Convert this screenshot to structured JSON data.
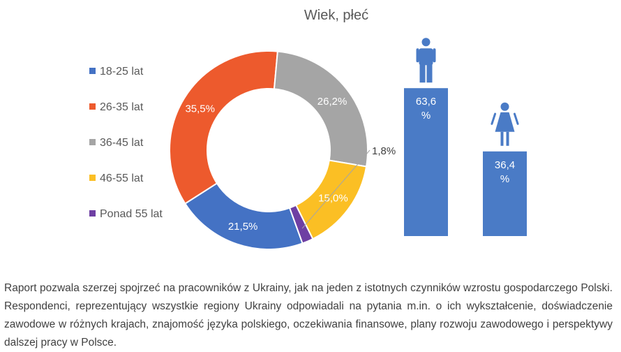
{
  "chart_data": [
    {
      "type": "pie",
      "title": "Wiek, płeć",
      "categories": [
        "18-25 lat",
        "26-35 lat",
        "36-45 lat",
        "46-55 lat",
        "Ponad 55 lat"
      ],
      "values": [
        21.5,
        35.5,
        26.2,
        15.0,
        1.8
      ],
      "labels": [
        "21,5%",
        "35,5%",
        "26,2%",
        "15,0%",
        "1,8%"
      ],
      "colors": [
        "#4472C4",
        "#ED5A2D",
        "#A5A5A5",
        "#FBBF24",
        "#6E3FA3"
      ],
      "donut": true,
      "legend": "left"
    },
    {
      "type": "bar",
      "categories": [
        "male-icon",
        "female-icon"
      ],
      "values": [
        63.6,
        36.4
      ],
      "labels": [
        "63,6 %",
        "36,4 %"
      ],
      "color": "#4A7BC6",
      "ylim": [
        0,
        100
      ]
    }
  ],
  "body_text": "Raport pozwala szerzej spojrzeć na pracowników z Ukrainy, jak na jeden z istotnych czynników wzrostu gospodarczego Polski. Respondenci, reprezentujący wszystkie regiony Ukrainy odpowiadali na pytania m.in. o ich wykształcenie, doświadczenie zawodowe w różnych krajach, znajomość języka polskiego, oczekiwania finansowe, plany rozwoju zawodowego i perspektywy dalszej pracy w Polsce."
}
